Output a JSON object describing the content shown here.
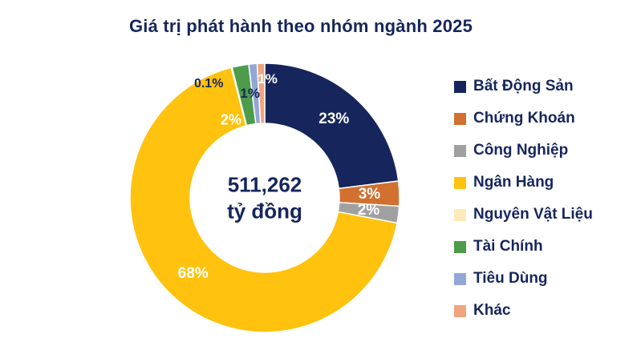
{
  "title": "Giá trị phát hành theo nhóm ngành 2025",
  "center": {
    "value": "511,262",
    "unit": "tỷ đồng"
  },
  "chart_data": {
    "type": "pie",
    "variant": "donut",
    "title": "Giá trị phát hành theo nhóm ngành 2025",
    "center_label": "511,262 tỷ đồng",
    "legend_position": "right",
    "start_angle_deg": 0,
    "direction": "clockwise",
    "series": [
      {
        "name": "Bất Động Sản",
        "value": 23,
        "label": "23%",
        "color": "#16265C",
        "label_color": "#FFFFFF"
      },
      {
        "name": "Chứng Khoán",
        "value": 3,
        "label": "3%",
        "color": "#D2702F",
        "label_color": "#FFFFFF"
      },
      {
        "name": "Công Nghiệp",
        "value": 2,
        "label": "2%",
        "color": "#A0A0A0",
        "label_color": "#FFFFFF"
      },
      {
        "name": "Ngân Hàng",
        "value": 68,
        "label": "68%",
        "color": "#FFC20F",
        "label_color": "#FFFFFF"
      },
      {
        "name": "Nguyên Vật Liệu",
        "value": 0.1,
        "label": "0.1%",
        "color": "#FFE9B8",
        "label_color": "#16265C"
      },
      {
        "name": "Tài Chính",
        "value": 2,
        "label": "2%",
        "color": "#4E9B4B",
        "label_color": "#FFFFFF"
      },
      {
        "name": "Tiêu Dùng",
        "value": 1,
        "label": "1%",
        "color": "#92A7D6",
        "label_color": "#16265C"
      },
      {
        "name": "Khác",
        "value": 0.9,
        "label": "1%",
        "color": "#F2A47E",
        "label_color": "#FFFFFF"
      }
    ]
  }
}
